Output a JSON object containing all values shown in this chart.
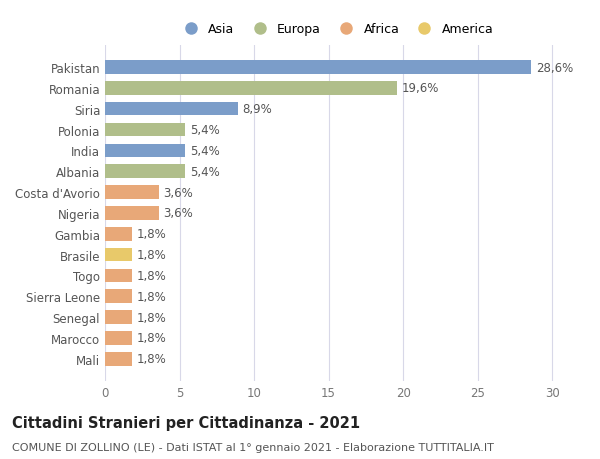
{
  "countries": [
    "Pakistan",
    "Romania",
    "Siria",
    "Polonia",
    "India",
    "Albania",
    "Costa d'Avorio",
    "Nigeria",
    "Gambia",
    "Brasile",
    "Togo",
    "Sierra Leone",
    "Senegal",
    "Marocco",
    "Mali"
  ],
  "values": [
    28.6,
    19.6,
    8.9,
    5.4,
    5.4,
    5.4,
    3.6,
    3.6,
    1.8,
    1.8,
    1.8,
    1.8,
    1.8,
    1.8,
    1.8
  ],
  "continents": [
    "Asia",
    "Europa",
    "Asia",
    "Europa",
    "Asia",
    "Europa",
    "Africa",
    "Africa",
    "Africa",
    "America",
    "Africa",
    "Africa",
    "Africa",
    "Africa",
    "Africa"
  ],
  "colors": {
    "Asia": "#7b9dc9",
    "Europa": "#b0be8a",
    "Africa": "#e8a878",
    "America": "#e8c96a"
  },
  "legend_order": [
    "Asia",
    "Europa",
    "Africa",
    "America"
  ],
  "xlim": [
    0,
    31
  ],
  "xticks": [
    0,
    5,
    10,
    15,
    20,
    25,
    30
  ],
  "title": "Cittadini Stranieri per Cittadinanza - 2021",
  "subtitle": "COMUNE DI ZOLLINO (LE) - Dati ISTAT al 1° gennaio 2021 - Elaborazione TUTTITALIA.IT",
  "background_color": "#ffffff",
  "grid_color": "#d8d8e8",
  "bar_label_color": "#555555",
  "label_fontsize": 8.5,
  "title_fontsize": 10.5,
  "subtitle_fontsize": 8.0
}
